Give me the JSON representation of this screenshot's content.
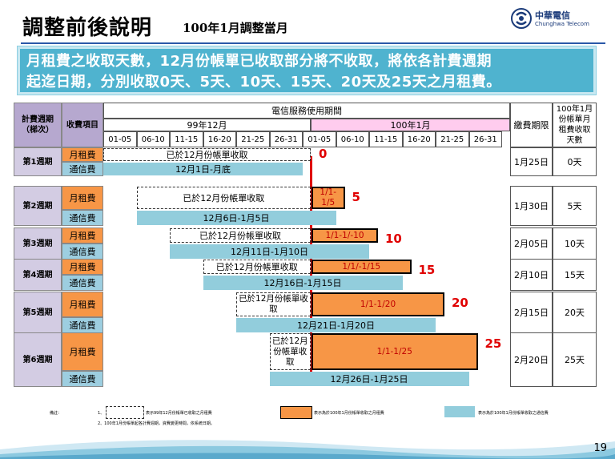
{
  "header": {
    "title": "調整前後說明",
    "subtitle": "100年1月調整當月"
  },
  "logo": {
    "name": "中華電信",
    "en": "Chunghwa Telecom"
  },
  "banner": {
    "line1": "月租費之收取天數，12月份帳單已收取部分將不收取，將依各計費週期",
    "line2": "起迄日期，分別收取0天、5天、10天、15天、20天及25天之月租費。"
  },
  "table": {
    "col_cycle": "計費週期\n（梯次）",
    "col_item": "收費項目",
    "col_period": "電信服務使用期間",
    "month_dec": "99年12月",
    "month_jan": "100年1月",
    "ranges": [
      "01-05",
      "06-10",
      "11-15",
      "16-20",
      "21-25",
      "26-31",
      "01-05",
      "06-10",
      "11-15",
      "16-20",
      "21-25",
      "26-31"
    ],
    "col_due": "繳費期限",
    "col_days": "100年1月份帳單月租費收取天數",
    "item_fee": "月租費",
    "item_tel": "通信費",
    "cycles": [
      {
        "name": "第1週期",
        "fee_old": "已於12月份帳單收取",
        "fee_new": "",
        "days_num": "0",
        "tel": "12月1日-月底",
        "due": "1月25日",
        "days": "0天"
      },
      {
        "name": "第2週期",
        "fee_old": "已於12月份帳單收取",
        "fee_new": "1/1-1/5",
        "days_num": "5",
        "tel": "12月6日-1月5日",
        "due": "1月30日",
        "days": "5天"
      },
      {
        "name": "第3週期",
        "fee_old": "已於12月份帳單收取",
        "fee_new": "1/1-1/-10",
        "days_num": "10",
        "tel": "12月11日-1月10日",
        "due": "2月05日",
        "days": "10天"
      },
      {
        "name": "第4週期",
        "fee_old": "已於12月份帳單收取",
        "fee_new": "1/1/-1/15",
        "days_num": "15",
        "tel": "12月16日-1月15日",
        "due": "2月10日",
        "days": "15天"
      },
      {
        "name": "第5週期",
        "fee_old": "已於12月份帳單收取",
        "fee_new": "1/1-1/20",
        "days_num": "20",
        "tel": "12月21日-1月20日",
        "due": "2月15日",
        "days": "20天"
      },
      {
        "name": "第6週期",
        "fee_old": "已於12月份帳單收取",
        "fee_new": "1/1-1/25",
        "days_num": "25",
        "tel": "12月26日-1月25日",
        "due": "2月20日",
        "days": "25天"
      }
    ]
  },
  "legend": {
    "label": "備註：",
    "n1": "1、",
    "dashed": "表示99年12月份帳單已收取之月租費",
    "orange": "表示為於100年1月份帳單收取之月租費",
    "blue": "表示為於100年1月份帳單收取之通信費",
    "n2": "2、100年1月份帳單起各計費週期，資費變更時間，依系統日期。"
  },
  "page": {
    "number": "19"
  },
  "colors": {
    "accent": "#4fb3cf",
    "orange": "#f79646",
    "blue": "#92cddc",
    "red": "#e00000"
  }
}
